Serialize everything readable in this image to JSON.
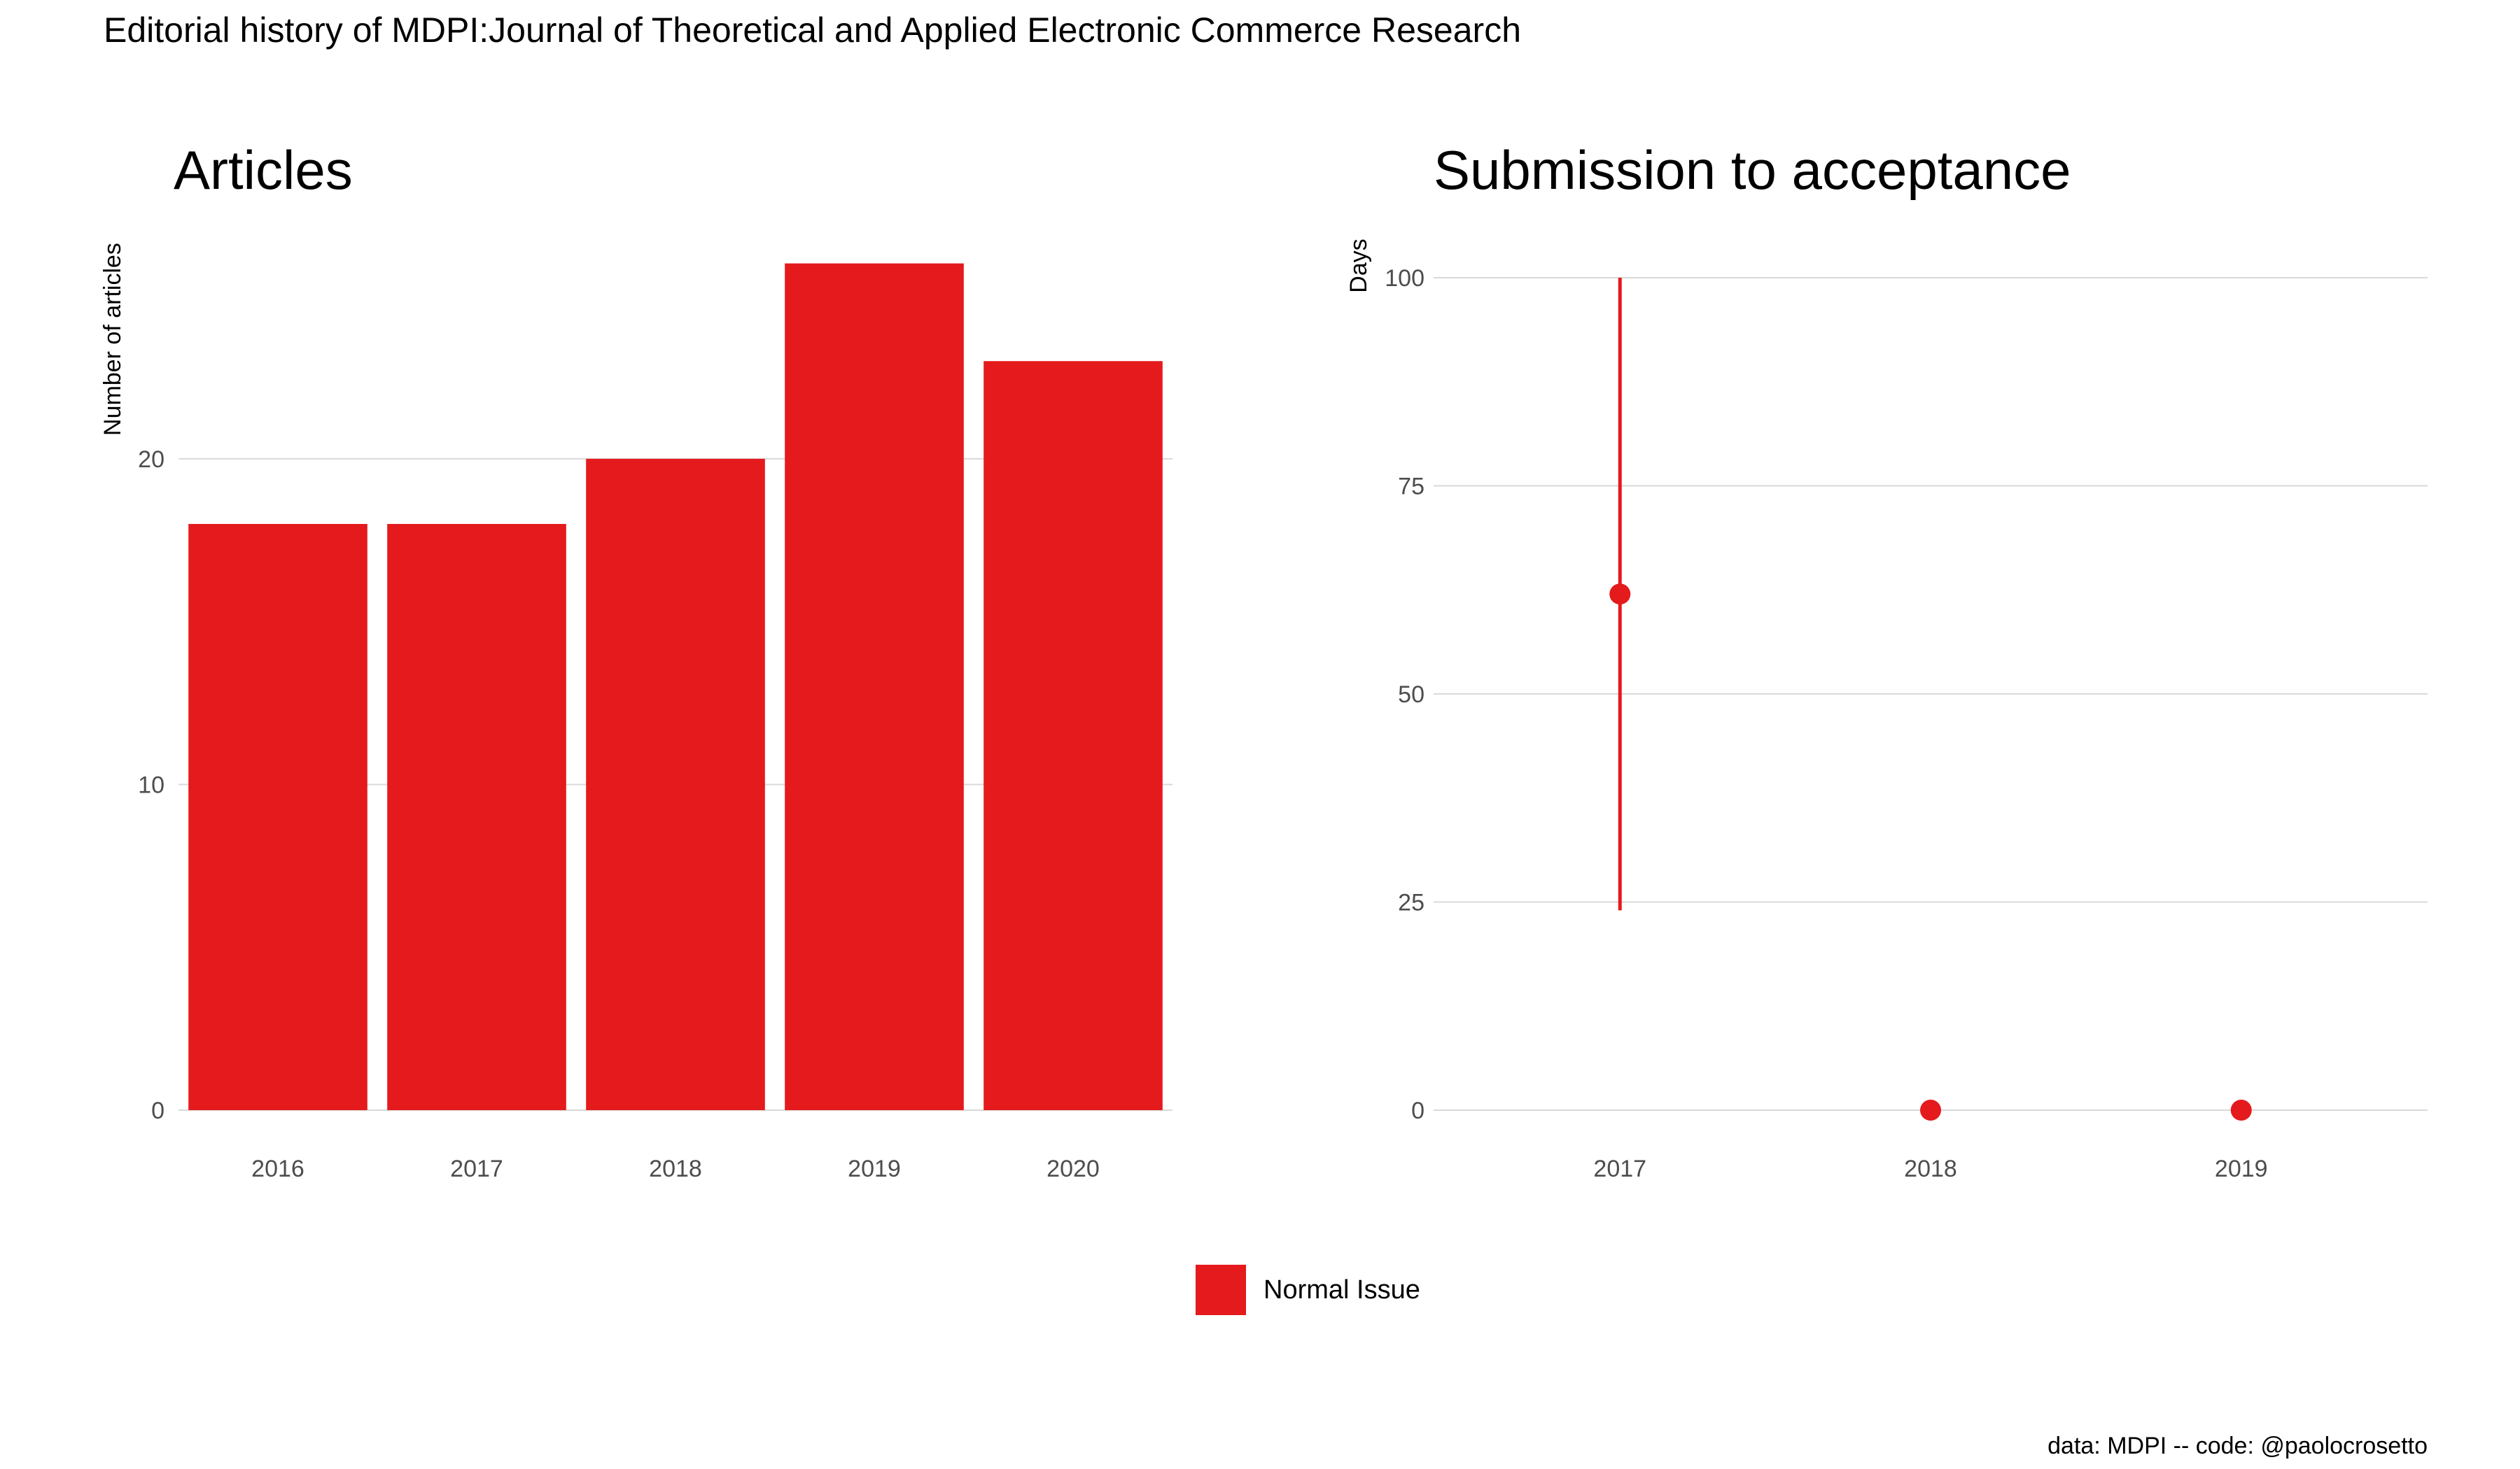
{
  "title": "Editorial history of MDPI:Journal of Theoretical and Applied Electronic Commerce Research",
  "caption": "data: MDPI -- code: @paolocrosetto",
  "accent_color": "#E41A1C",
  "legend": {
    "position": "bottom",
    "label": "Normal Issue"
  },
  "chart_data": [
    {
      "type": "bar",
      "title": "Articles",
      "xlabel": "",
      "ylabel": "Number of articles",
      "categories": [
        "2016",
        "2017",
        "2018",
        "2019",
        "2020"
      ],
      "series": [
        {
          "name": "Normal Issue",
          "values": [
            18,
            18,
            20,
            26,
            23
          ]
        }
      ],
      "ylim": [
        0,
        27
      ],
      "yticks": [
        "0",
        "10",
        "20"
      ],
      "grid": true
    },
    {
      "type": "scatter",
      "title": "Submission to acceptance",
      "xlabel": "",
      "ylabel": "Days",
      "categories": [
        "2017",
        "2018",
        "2019"
      ],
      "points": [
        {
          "x": "2017",
          "y": 62,
          "low": 24,
          "high": 100
        },
        {
          "x": "2018",
          "y": 0,
          "low": 0,
          "high": 0
        },
        {
          "x": "2019",
          "y": 0,
          "low": 0,
          "high": 0
        }
      ],
      "ylim": [
        0,
        100
      ],
      "yticks": [
        "0",
        "25",
        "50",
        "75",
        "100"
      ],
      "grid": true
    }
  ]
}
